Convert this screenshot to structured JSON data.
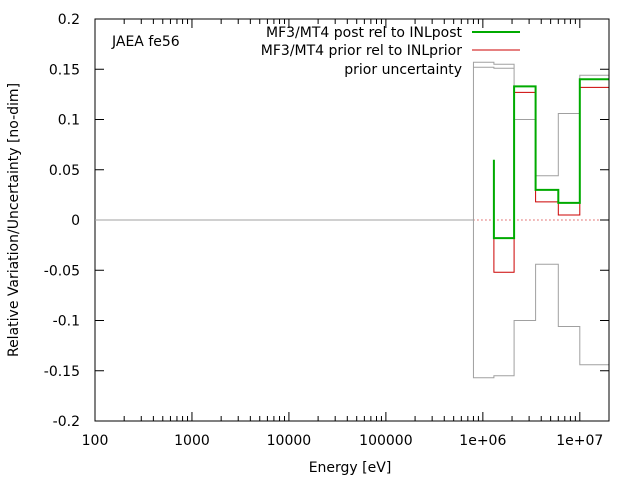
{
  "chart_data": {
    "type": "line",
    "title": "",
    "annotation": "JAEA fe56",
    "xlabel": "Energy [eV]",
    "ylabel": "Relative Variation/Uncertainty [no-dim]",
    "xscale": "log",
    "xlim": [
      100,
      20000000
    ],
    "ylim": [
      -0.2,
      0.2
    ],
    "xticks": [
      {
        "value": 100,
        "label": "100"
      },
      {
        "value": 1000,
        "label": "1000"
      },
      {
        "value": 10000,
        "label": "10000"
      },
      {
        "value": 100000,
        "label": "100000"
      },
      {
        "value": 1000000,
        "label": "1e+06"
      },
      {
        "value": 10000000,
        "label": "1e+07"
      }
    ],
    "yticks": [
      {
        "value": -0.2,
        "label": "-0.2"
      },
      {
        "value": -0.15,
        "label": "-0.15"
      },
      {
        "value": -0.1,
        "label": "-0.1"
      },
      {
        "value": -0.05,
        "label": "-0.05"
      },
      {
        "value": 0,
        "label": "0"
      },
      {
        "value": 0.05,
        "label": "0.05"
      },
      {
        "value": 0.1,
        "label": "0.1"
      },
      {
        "value": 0.15,
        "label": "0.15"
      },
      {
        "value": 0.2,
        "label": "0.2"
      }
    ],
    "legend_position": "top-right",
    "series": [
      {
        "name": "MF3/MT4 post rel to INLpost",
        "color": "#00aa00",
        "points": [
          [
            1300000,
            0.06
          ],
          [
            1300000,
            -0.018
          ],
          [
            2100000,
            -0.018
          ],
          [
            2100000,
            0.133
          ],
          [
            3500000,
            0.133
          ],
          [
            3500000,
            0.03
          ],
          [
            6000000,
            0.03
          ],
          [
            6000000,
            0.017
          ],
          [
            10000000,
            0.017
          ],
          [
            10000000,
            0.14
          ],
          [
            20000000,
            0.14
          ]
        ]
      },
      {
        "name": "MF3/MT4 prior rel to INLprior",
        "color": "#cc0000",
        "points": [
          [
            1300000,
            0.028
          ],
          [
            1300000,
            -0.052
          ],
          [
            2100000,
            -0.052
          ],
          [
            2100000,
            0.127
          ],
          [
            3500000,
            0.127
          ],
          [
            3500000,
            0.018
          ],
          [
            6000000,
            0.018
          ],
          [
            6000000,
            0.005
          ],
          [
            10000000,
            0.005
          ],
          [
            10000000,
            0.132
          ],
          [
            20000000,
            0.132
          ]
        ]
      },
      {
        "name": "prior uncertainty",
        "color": "#a0a0a0",
        "points": [
          [
            100,
            0
          ],
          [
            800000,
            0
          ],
          [
            800000,
            0.157
          ],
          [
            1300000,
            0.157
          ],
          [
            1300000,
            0.155
          ],
          [
            2100000,
            0.155
          ],
          [
            2100000,
            0.1
          ],
          [
            3500000,
            0.1
          ],
          [
            3500000,
            0.044
          ],
          [
            6000000,
            0.044
          ],
          [
            6000000,
            0.106
          ],
          [
            10000000,
            0.106
          ],
          [
            10000000,
            0.144
          ],
          [
            20000000,
            0.144
          ]
        ]
      },
      {
        "name": "",
        "color": "#a0a0a0",
        "points": [
          [
            800000,
            0
          ],
          [
            800000,
            -0.157
          ],
          [
            1300000,
            -0.157
          ],
          [
            1300000,
            -0.155
          ],
          [
            2100000,
            -0.155
          ],
          [
            2100000,
            -0.1
          ],
          [
            3500000,
            -0.1
          ],
          [
            3500000,
            -0.044
          ],
          [
            6000000,
            -0.044
          ],
          [
            6000000,
            -0.106
          ],
          [
            10000000,
            -0.106
          ],
          [
            10000000,
            -0.144
          ],
          [
            20000000,
            -0.144
          ]
        ]
      },
      {
        "name": "",
        "color": "#a0a0a0",
        "points": [
          [
            800000,
            0.152
          ],
          [
            1300000,
            0.152
          ],
          [
            1300000,
            0.151
          ],
          [
            2100000,
            0.151
          ]
        ]
      }
    ],
    "reference_line": {
      "y": 0,
      "style": "dotted",
      "color": "#cc0000",
      "x_from": 800000
    }
  }
}
